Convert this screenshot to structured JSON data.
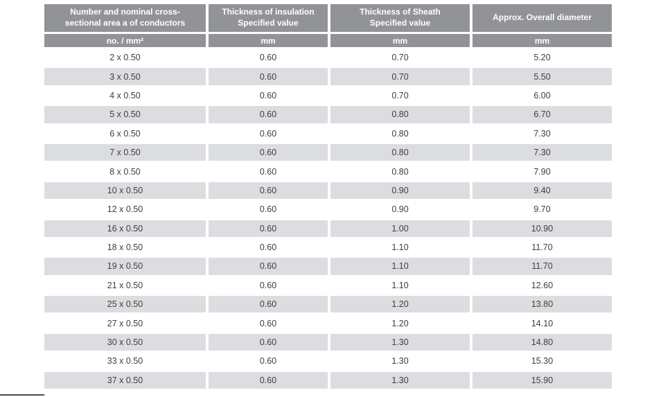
{
  "page": {
    "background": "#ffffff"
  },
  "colors": {
    "header_bg": "#919396",
    "header_text": "#ffffff",
    "row_bg": "#ffffff",
    "row_alt_bg": "#dcdde0",
    "data_text": "#3e3e40",
    "bottom_rule": "#4d4d4f"
  },
  "table": {
    "column_keys": [
      "conductors",
      "insulation",
      "sheath",
      "diameter"
    ],
    "columns": [
      {
        "header": "Number and nominal cross-\nsectional area a of conductors",
        "unit": "no. / mm²"
      },
      {
        "header": "Thickness of insulation\nSpecified value",
        "unit": "mm"
      },
      {
        "header": "Thickness of Sheath\nSpecified value",
        "unit": "mm"
      },
      {
        "header": "Approx. Overall diameter",
        "unit": "mm"
      }
    ],
    "rows": [
      [
        "2 x 0.50",
        "0.60",
        "0.70",
        "5.20"
      ],
      [
        "3 x 0.50",
        "0.60",
        "0.70",
        "5.50"
      ],
      [
        "4 x 0.50",
        "0.60",
        "0.70",
        "6.00"
      ],
      [
        "5 x 0.50",
        "0.60",
        "0.80",
        "6.70"
      ],
      [
        "6 x 0.50",
        "0.60",
        "0.80",
        "7.30"
      ],
      [
        "7 x 0.50",
        "0.60",
        "0.80",
        "7.30"
      ],
      [
        "8 x 0.50",
        "0.60",
        "0.80",
        "7.90"
      ],
      [
        "10 x 0.50",
        "0.60",
        "0.90",
        "9.40"
      ],
      [
        "12 x 0.50",
        "0.60",
        "0.90",
        "9.70"
      ],
      [
        "16 x 0.50",
        "0.60",
        "1.00",
        "10.90"
      ],
      [
        "18 x 0.50",
        "0.60",
        "1.10",
        "11.70"
      ],
      [
        "19 x 0.50",
        "0.60",
        "1.10",
        "11.70"
      ],
      [
        "21 x 0.50",
        "0.60",
        "1.10",
        "12.60"
      ],
      [
        "25 x 0.50",
        "0.60",
        "1.20",
        "13.80"
      ],
      [
        "27 x 0.50",
        "0.60",
        "1.20",
        "14.10"
      ],
      [
        "30 x 0.50",
        "0.60",
        "1.30",
        "14.80"
      ],
      [
        "33 x 0.50",
        "0.60",
        "1.30",
        "15.30"
      ],
      [
        "37 x 0.50",
        "0.60",
        "1.30",
        "15.90"
      ]
    ]
  }
}
